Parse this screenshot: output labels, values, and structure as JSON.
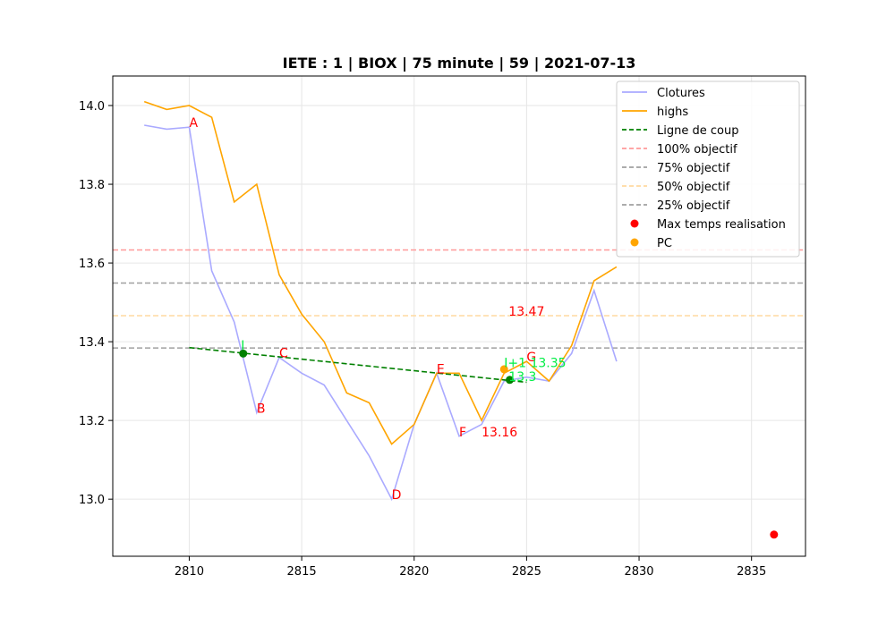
{
  "chart_data": {
    "type": "line",
    "title": "IETE : 1 | BIOX | 75 minute | 59 | 2021-07-13",
    "xlabel": "",
    "ylabel": "",
    "xlim": [
      2806.6,
      2837.4
    ],
    "ylim": [
      12.855,
      14.075
    ],
    "xticks": [
      2810,
      2815,
      2820,
      2825,
      2830,
      2835
    ],
    "yticks": [
      13.0,
      13.2,
      13.4,
      13.6,
      13.8,
      14.0
    ],
    "xtick_labels": [
      "2810",
      "2815",
      "2820",
      "2825",
      "2830",
      "2835"
    ],
    "ytick_labels": [
      "13.0",
      "13.2",
      "13.4",
      "13.6",
      "13.8",
      "14.0"
    ],
    "grid": true,
    "legend_position": "top-right",
    "colors": {
      "closes": "#aaaaff",
      "highs": "#ffa500",
      "trade_line": "#008000",
      "obj100": "#ff9999",
      "obj75": "#a0a0a0",
      "obj50": "#ffdaa0",
      "obj25": "#a0a0a0",
      "max_time": "#ff0000",
      "pc": "#ffa500",
      "label_red": "#ff0000",
      "label_green": "#00ee44"
    },
    "series": [
      {
        "name": "Clotures",
        "x": [
          2808,
          2809,
          2810,
          2811,
          2812,
          2813,
          2814,
          2815,
          2816,
          2817,
          2818,
          2819,
          2820,
          2821,
          2822,
          2823,
          2824,
          2825,
          2826,
          2827,
          2828,
          2829
        ],
        "values": [
          13.95,
          13.94,
          13.945,
          13.58,
          13.45,
          13.22,
          13.36,
          13.32,
          13.29,
          13.2,
          13.11,
          13.0,
          13.19,
          13.32,
          13.16,
          13.19,
          13.3,
          13.31,
          13.3,
          13.37,
          13.53,
          13.35
        ]
      },
      {
        "name": "highs",
        "x": [
          2808,
          2809,
          2810,
          2811,
          2812,
          2813,
          2814,
          2815,
          2816,
          2817,
          2818,
          2819,
          2820,
          2821,
          2822,
          2823,
          2824,
          2825,
          2826,
          2827,
          2828,
          2829
        ],
        "values": [
          14.01,
          13.99,
          14.0,
          13.97,
          13.755,
          13.8,
          13.57,
          13.47,
          13.4,
          13.27,
          13.245,
          13.14,
          13.19,
          13.32,
          13.32,
          13.2,
          13.32,
          13.35,
          13.3,
          13.39,
          13.555,
          13.59
        ]
      }
    ],
    "trade_line": {
      "name": "Ligne de coup",
      "x": [
        2810,
        2825
      ],
      "values": [
        13.385,
        13.297
      ]
    },
    "objectives": [
      {
        "name": "100% objectif",
        "value": 13.633
      },
      {
        "name": "75% objectif",
        "value": 13.549
      },
      {
        "name": "50% objectif",
        "value": 13.466
      },
      {
        "name": "25% objectif",
        "value": 13.384
      }
    ],
    "max_time_point": {
      "name": "Max temps realisation",
      "x": 2836,
      "y": 12.91
    },
    "pc_point": {
      "name": "PC",
      "x": 2824,
      "y": 13.33
    },
    "trade_points": [
      {
        "x": 2812.4,
        "y": 13.37
      },
      {
        "x": 2824.25,
        "y": 13.303
      }
    ],
    "annotations": [
      {
        "text": "A",
        "x": 2810,
        "y": 13.945,
        "color": "red"
      },
      {
        "text": "B",
        "x": 2813,
        "y": 13.22,
        "color": "red"
      },
      {
        "text": "C",
        "x": 2814,
        "y": 13.36,
        "color": "red"
      },
      {
        "text": "D",
        "x": 2819,
        "y": 13.0,
        "color": "red"
      },
      {
        "text": "E",
        "x": 2821,
        "y": 13.32,
        "color": "red"
      },
      {
        "text": "F",
        "x": 2822,
        "y": 13.16,
        "color": "red"
      },
      {
        "text": "G",
        "x": 2825,
        "y": 13.35,
        "color": "red"
      },
      {
        "text": "13.16",
        "x": 2823,
        "y": 13.16,
        "color": "red"
      },
      {
        "text": "13.47",
        "x": 2824.2,
        "y": 13.466,
        "color": "red"
      },
      {
        "text": "I",
        "x": 2812.3,
        "y": 13.38,
        "color": "green"
      },
      {
        "text": "I+1 13.35",
        "x": 2824,
        "y": 13.335,
        "color": "green"
      },
      {
        "text": "13.3",
        "x": 2824.2,
        "y": 13.3,
        "color": "green"
      }
    ]
  }
}
